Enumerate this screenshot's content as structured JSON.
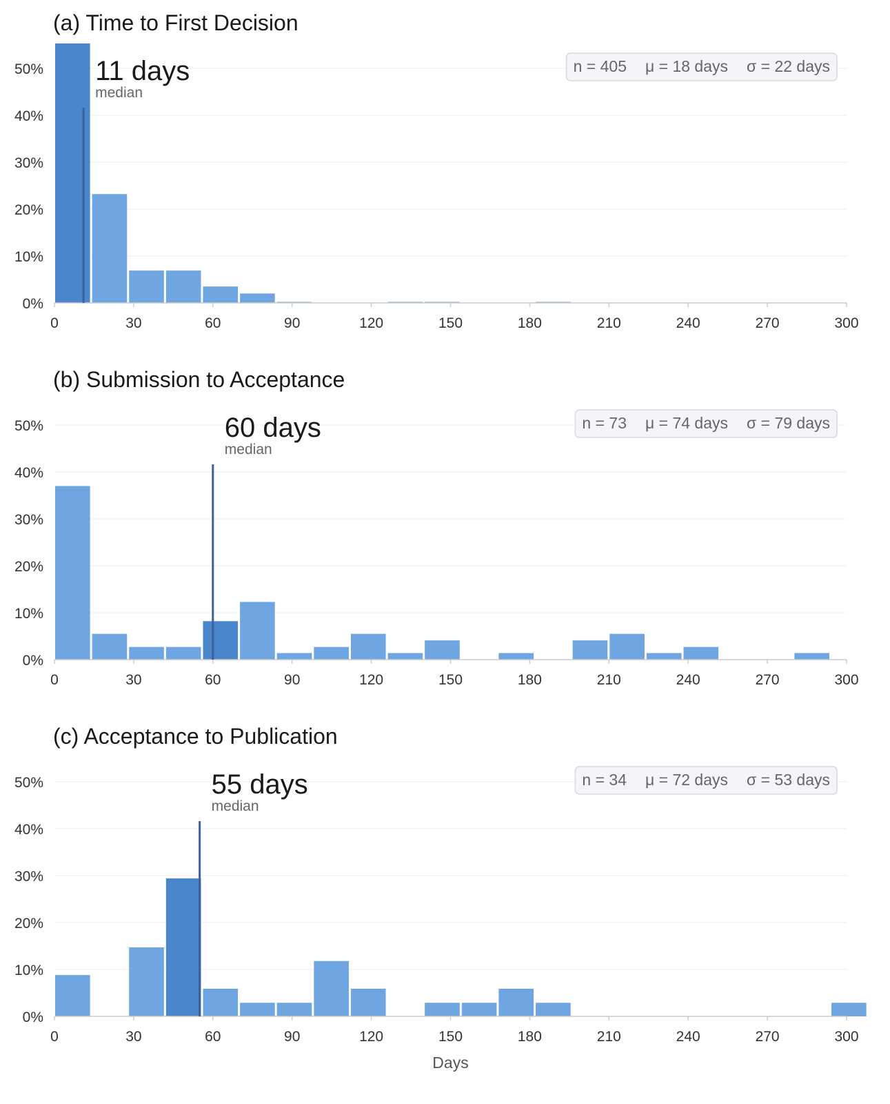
{
  "chart_data": [
    {
      "type": "bar",
      "title": "(a)  Time to First Decision",
      "bin_width_days": 14,
      "x": [
        0,
        14,
        28,
        42,
        56,
        70,
        84,
        98,
        112,
        126,
        140,
        154,
        168,
        182,
        196,
        210,
        224,
        238,
        252,
        266,
        280,
        294
      ],
      "values": [
        55.3,
        23.2,
        6.9,
        6.9,
        3.5,
        2.0,
        0.2,
        0,
        0,
        0.2,
        0.2,
        0,
        0,
        0.2,
        0,
        0,
        0,
        0,
        0,
        0,
        0,
        0
      ],
      "highlight_index": 0,
      "median": 11,
      "median_label": "11 days",
      "median_caption": "median",
      "stats": {
        "n": "n = 405",
        "mean": "μ = 18 days",
        "sd": "σ = 22 days"
      },
      "xlim": [
        0,
        300
      ],
      "ylim": [
        0,
        55
      ],
      "xticks": [
        0,
        30,
        60,
        90,
        120,
        150,
        180,
        210,
        240,
        270,
        300
      ],
      "yticks": [
        0,
        10,
        20,
        30,
        40,
        50
      ],
      "ytick_suffix": "%",
      "xlabel": "",
      "grid": true
    },
    {
      "type": "bar",
      "title": "(b)  Submission to Acceptance",
      "bin_width_days": 14,
      "x": [
        0,
        14,
        28,
        42,
        56,
        70,
        84,
        98,
        112,
        126,
        140,
        154,
        168,
        182,
        196,
        210,
        224,
        238,
        252,
        266,
        280,
        294
      ],
      "values": [
        37.0,
        5.5,
        2.7,
        2.7,
        8.2,
        12.3,
        1.4,
        2.7,
        5.5,
        1.4,
        4.1,
        0,
        1.4,
        0,
        4.1,
        5.5,
        1.4,
        2.7,
        0,
        0,
        1.4,
        0
      ],
      "highlight_index": 4,
      "median": 60,
      "median_label": "60 days",
      "median_caption": "median",
      "stats": {
        "n": "n = 73",
        "mean": "μ = 74 days",
        "sd": "σ = 79 days"
      },
      "xlim": [
        0,
        300
      ],
      "ylim": [
        0,
        55
      ],
      "xticks": [
        0,
        30,
        60,
        90,
        120,
        150,
        180,
        210,
        240,
        270,
        300
      ],
      "yticks": [
        0,
        10,
        20,
        30,
        40,
        50
      ],
      "ytick_suffix": "%",
      "xlabel": "",
      "grid": true
    },
    {
      "type": "bar",
      "title": "(c)  Acceptance to Publication",
      "bin_width_days": 14,
      "x": [
        0,
        14,
        28,
        42,
        56,
        70,
        84,
        98,
        112,
        126,
        140,
        154,
        168,
        182,
        196,
        210,
        224,
        238,
        252,
        266,
        280,
        294
      ],
      "values": [
        8.8,
        0,
        14.7,
        29.4,
        5.9,
        2.9,
        2.9,
        11.8,
        5.9,
        0,
        2.9,
        2.9,
        5.9,
        2.9,
        0,
        0,
        0,
        0,
        0,
        0,
        0,
        2.9
      ],
      "highlight_index": 3,
      "median": 55,
      "median_label": "55 days",
      "median_caption": "median",
      "stats": {
        "n": "n = 34",
        "mean": "μ = 72 days",
        "sd": "σ = 53 days"
      },
      "xlim": [
        0,
        300
      ],
      "ylim": [
        0,
        55
      ],
      "xticks": [
        0,
        30,
        60,
        90,
        120,
        150,
        180,
        210,
        240,
        270,
        300
      ],
      "yticks": [
        0,
        10,
        20,
        30,
        40,
        50
      ],
      "ytick_suffix": "%",
      "xlabel": "Days",
      "grid": true
    }
  ],
  "colors": {
    "bar": "#6fa5e1",
    "bar_highlight": "#4a86cc",
    "median_line": "#3d5f9a",
    "grid": "#eeeeee",
    "axis": "#cccccc",
    "stats_box_fill": "#f4f5f8",
    "stats_box_stroke": "#d5d9e0"
  }
}
